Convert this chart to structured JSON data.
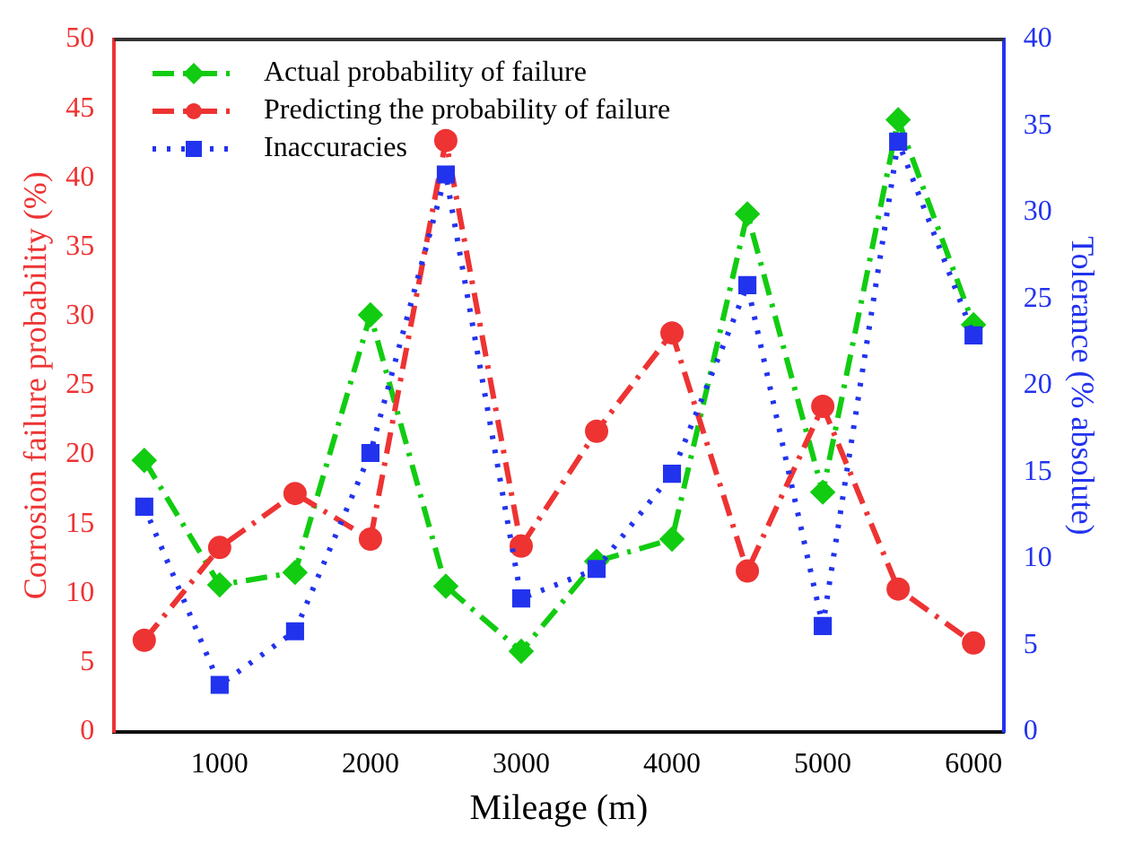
{
  "chart_data": {
    "type": "line",
    "xlabel": "Mileage (m)",
    "ylabel": "Corrosion failure probability (%)",
    "y2label": "Tolerance (% absolute)",
    "x": [
      500,
      1000,
      1500,
      2000,
      2500,
      3000,
      3500,
      4000,
      4500,
      5000,
      5500,
      6000
    ],
    "series": [
      {
        "name": "Actual probability of failure",
        "color": "#11cc11",
        "marker": "diamond",
        "line_style": "dashed",
        "values": [
          19.6,
          10.6,
          11.5,
          30.1,
          10.5,
          5.8,
          12.3,
          13.9,
          37.4,
          17.3,
          44.2,
          29.4
        ]
      },
      {
        "name": "Predicting the probability of failure",
        "color": "#ee3333",
        "marker": "circle",
        "line_style": "dashed",
        "values": [
          6.6,
          13.3,
          17.2,
          13.9,
          42.7,
          13.4,
          21.7,
          28.8,
          11.6,
          23.5,
          10.3,
          6.4
        ]
      },
      {
        "name": "Inaccuracies",
        "color": "#2233ee",
        "marker": "square",
        "line_style": "dotted",
        "axis": "y2",
        "values": [
          13.0,
          2.7,
          5.8,
          16.1,
          32.2,
          7.7,
          9.4,
          14.9,
          25.8,
          6.1,
          34.1,
          22.9
        ]
      }
    ],
    "xlim": [
      300,
      6200
    ],
    "xticks": [
      1000,
      2000,
      3000,
      4000,
      5000,
      6000
    ],
    "ylim": [
      0,
      50
    ],
    "yticks": [
      0,
      5,
      10,
      15,
      20,
      25,
      30,
      35,
      40,
      45,
      50
    ],
    "y2lim": [
      0,
      40
    ],
    "y2ticks": [
      0,
      5,
      10,
      15,
      20,
      25,
      30,
      35,
      40
    ],
    "grid": false,
    "legend": "top left"
  }
}
